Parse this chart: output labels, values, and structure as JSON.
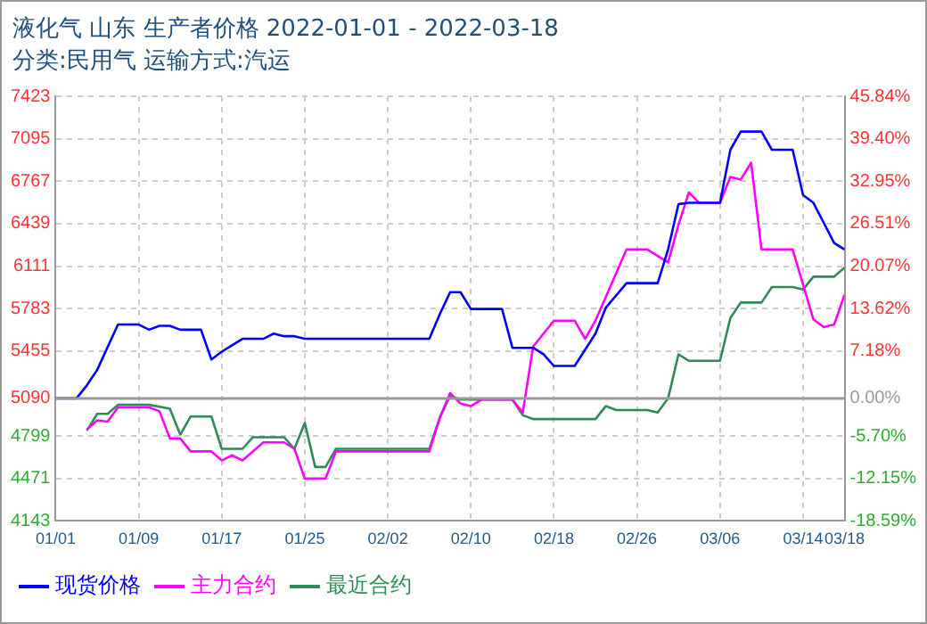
{
  "chart_data": {
    "type": "line",
    "title": "液化气 山东 生产者价格 2022-01-01 - 2022-03-18",
    "subtitle": "分类:民用气 运输方式:汽运",
    "xlim": [
      "2022-01-01",
      "2022-03-18"
    ],
    "xticks": [
      {
        "value": "2022-01-01",
        "label": "01/01"
      },
      {
        "value": "2022-01-09",
        "label": "01/09"
      },
      {
        "value": "2022-01-17",
        "label": "01/17"
      },
      {
        "value": "2022-01-25",
        "label": "01/25"
      },
      {
        "value": "2022-02-02",
        "label": "02/02"
      },
      {
        "value": "2022-02-10",
        "label": "02/10"
      },
      {
        "value": "2022-02-18",
        "label": "02/18"
      },
      {
        "value": "2022-02-26",
        "label": "02/26"
      },
      {
        "value": "2022-03-06",
        "label": "03/06"
      },
      {
        "value": "2022-03-14",
        "label": "03/14"
      },
      {
        "value": "2022-03-18",
        "label": "03/18"
      }
    ],
    "ylim": [
      4143,
      7423
    ],
    "yticks": [
      4143,
      4471,
      4799,
      5090,
      5455,
      5783,
      6111,
      6439,
      6767,
      7095,
      7423
    ],
    "y2lim": [
      -18.59,
      45.84
    ],
    "y2ticks": [
      {
        "value": -18.59,
        "label": "-18.59%"
      },
      {
        "value": -12.15,
        "label": "-12.15%"
      },
      {
        "value": -5.7,
        "label": "-5.70%"
      },
      {
        "value": 0,
        "label": "0.00%"
      },
      {
        "value": 7.18,
        "label": "7.18%"
      },
      {
        "value": 13.62,
        "label": "13.62%"
      },
      {
        "value": 20.07,
        "label": "20.07%"
      },
      {
        "value": 26.51,
        "label": "26.51%"
      },
      {
        "value": 32.95,
        "label": "32.95%"
      },
      {
        "value": 39.4,
        "label": "39.40%"
      },
      {
        "value": 45.84,
        "label": "45.84%"
      }
    ],
    "ref_lines": [
      {
        "axis": "y2",
        "value": 0,
        "color": "#999999"
      }
    ],
    "grid": true,
    "legend": "bottom",
    "marker": "none",
    "line_style": "solid",
    "series": [
      {
        "name": "现货价格",
        "color": "#0000ff",
        "x": [
          "2022-01-01",
          "2022-01-03",
          "2022-01-04",
          "2022-01-05",
          "2022-01-07",
          "2022-01-09",
          "2022-01-10",
          "2022-01-11",
          "2022-01-12",
          "2022-01-13",
          "2022-01-15",
          "2022-01-16",
          "2022-01-17",
          "2022-01-19",
          "2022-01-21",
          "2022-01-22",
          "2022-01-23",
          "2022-01-24",
          "2022-01-25",
          "2022-02-06",
          "2022-02-07",
          "2022-02-08",
          "2022-02-09",
          "2022-02-10",
          "2022-02-13",
          "2022-02-14",
          "2022-02-16",
          "2022-02-17",
          "2022-02-18",
          "2022-02-20",
          "2022-02-22",
          "2022-02-23",
          "2022-02-25",
          "2022-02-28",
          "2022-03-01",
          "2022-03-02",
          "2022-03-03",
          "2022-03-06",
          "2022-03-07",
          "2022-03-08",
          "2022-03-10",
          "2022-03-11",
          "2022-03-13",
          "2022-03-14",
          "2022-03-15",
          "2022-03-17",
          "2022-03-18"
        ],
        "values": [
          5090,
          5090,
          5190,
          5310,
          5660,
          5660,
          5620,
          5650,
          5650,
          5620,
          5620,
          5390,
          5450,
          5550,
          5550,
          5590,
          5570,
          5570,
          5550,
          5550,
          5740,
          5910,
          5910,
          5780,
          5780,
          5480,
          5480,
          5430,
          5340,
          5340,
          5590,
          5790,
          5980,
          5980,
          6240,
          6590,
          6600,
          6600,
          7010,
          7150,
          7150,
          7010,
          7010,
          6660,
          6600,
          6290,
          6240
        ]
      },
      {
        "name": "主力合约",
        "color": "#ff00ff",
        "x": [
          "2022-01-04",
          "2022-01-05",
          "2022-01-06",
          "2022-01-07",
          "2022-01-10",
          "2022-01-11",
          "2022-01-12",
          "2022-01-13",
          "2022-01-14",
          "2022-01-16",
          "2022-01-17",
          "2022-01-18",
          "2022-01-19",
          "2022-01-21",
          "2022-01-23",
          "2022-01-24",
          "2022-01-25",
          "2022-01-27",
          "2022-01-28",
          "2022-02-06",
          "2022-02-07",
          "2022-02-08",
          "2022-02-09",
          "2022-02-10",
          "2022-02-11",
          "2022-02-14",
          "2022-02-15",
          "2022-02-16",
          "2022-02-18",
          "2022-02-20",
          "2022-02-21",
          "2022-02-22",
          "2022-02-25",
          "2022-02-27",
          "2022-03-01",
          "2022-03-02",
          "2022-03-03",
          "2022-03-04",
          "2022-03-06",
          "2022-03-07",
          "2022-03-08",
          "2022-03-09",
          "2022-03-10",
          "2022-03-13",
          "2022-03-15",
          "2022-03-16",
          "2022-03-17",
          "2022-03-18"
        ],
        "values": [
          4850,
          4920,
          4910,
          5020,
          5020,
          4990,
          4780,
          4780,
          4680,
          4680,
          4610,
          4650,
          4610,
          4750,
          4750,
          4700,
          4470,
          4470,
          4680,
          4680,
          4940,
          5130,
          5050,
          5030,
          5080,
          5080,
          4980,
          5490,
          5690,
          5690,
          5550,
          5690,
          6240,
          6240,
          6140,
          6430,
          6680,
          6600,
          6600,
          6800,
          6780,
          6910,
          6240,
          6240,
          5700,
          5640,
          5660,
          5890
        ]
      },
      {
        "name": "最近合约",
        "color": "#2e8b57",
        "x": [
          "2022-01-04",
          "2022-01-05",
          "2022-01-06",
          "2022-01-07",
          "2022-01-10",
          "2022-01-12",
          "2022-01-13",
          "2022-01-14",
          "2022-01-16",
          "2022-01-17",
          "2022-01-19",
          "2022-01-20",
          "2022-01-23",
          "2022-01-24",
          "2022-01-25",
          "2022-01-26",
          "2022-01-27",
          "2022-01-28",
          "2022-02-06",
          "2022-02-07",
          "2022-02-08",
          "2022-02-09",
          "2022-02-14",
          "2022-02-15",
          "2022-02-16",
          "2022-02-22",
          "2022-02-23",
          "2022-02-24",
          "2022-02-27",
          "2022-02-28",
          "2022-03-01",
          "2022-03-02",
          "2022-03-03",
          "2022-03-06",
          "2022-03-07",
          "2022-03-08",
          "2022-03-10",
          "2022-03-11",
          "2022-03-13",
          "2022-03-14",
          "2022-03-15",
          "2022-03-17",
          "2022-03-18"
        ],
        "values": [
          4840,
          4970,
          4970,
          5040,
          5040,
          5010,
          4810,
          4950,
          4950,
          4700,
          4700,
          4790,
          4790,
          4700,
          4900,
          4560,
          4560,
          4700,
          4700,
          4940,
          5110,
          5080,
          5080,
          4960,
          4930,
          4930,
          5030,
          5000,
          5000,
          4980,
          5090,
          5430,
          5380,
          5380,
          5710,
          5830,
          5830,
          5950,
          5950,
          5930,
          6030,
          6030,
          6100
        ]
      }
    ]
  }
}
